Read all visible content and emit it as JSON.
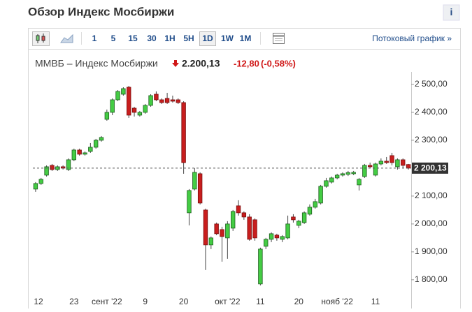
{
  "title": "Обзор Индекс Мосбиржи",
  "info_icon": "i",
  "toolbar": {
    "intervals": [
      "1",
      "5",
      "15",
      "30",
      "1H",
      "5H",
      "1D",
      "1W",
      "1M"
    ],
    "active": "1D",
    "stream_link": "Потоковый график »"
  },
  "quote": {
    "name": "ММВБ – Индекс Мосбиржи",
    "price": "2.200,13",
    "change": "-12,80",
    "change_pct": "(-0,58%)"
  },
  "chart_data": {
    "type": "candlestick",
    "categories": [
      "12",
      null,
      null,
      null,
      null,
      null,
      null,
      "23",
      null,
      null,
      null,
      null,
      null,
      "сент '22",
      null,
      null,
      null,
      null,
      null,
      null,
      "9",
      null,
      null,
      null,
      null,
      null,
      null,
      "20",
      null,
      null,
      null,
      null,
      null,
      null,
      null,
      "окт '22",
      null,
      null,
      null,
      null,
      null,
      "11",
      null,
      null,
      null,
      null,
      null,
      null,
      "20",
      null,
      null,
      null,
      null,
      null,
      null,
      "нояб '22",
      null,
      null,
      null,
      null,
      null,
      null,
      "11",
      null,
      null,
      null,
      null,
      null,
      null
    ],
    "open": [
      2125,
      2145,
      2175,
      2210,
      2195,
      2205,
      2195,
      2230,
      2265,
      2250,
      2260,
      2275,
      2300,
      2375,
      2400,
      2445,
      2465,
      2490,
      2415,
      2390,
      2400,
      2425,
      2465,
      2445,
      2450,
      2445,
      2445,
      2435,
      2040,
      2125,
      2180,
      2050,
      1925,
      2000,
      1980,
      1950,
      1985,
      2065,
      2040,
      2025,
      2015,
      1785,
      1920,
      1945,
      1960,
      1945,
      1950,
      2025,
      1995,
      2005,
      2035,
      2060,
      2075,
      2135,
      2150,
      2165,
      2175,
      2178,
      2180,
      2140,
      2170,
      2210,
      2175,
      2215,
      2225,
      2245,
      2205,
      2230,
      2213
    ],
    "high": [
      2150,
      2165,
      2210,
      2215,
      2210,
      2210,
      2235,
      2270,
      2270,
      2260,
      2290,
      2305,
      2315,
      2410,
      2450,
      2480,
      2490,
      2495,
      2420,
      2405,
      2430,
      2465,
      2475,
      2450,
      2470,
      2460,
      2450,
      2440,
      2125,
      2200,
      2185,
      2055,
      1955,
      2005,
      1990,
      2010,
      2050,
      2085,
      2045,
      2035,
      2020,
      1915,
      1950,
      1970,
      1965,
      1960,
      2030,
      2035,
      2015,
      2045,
      2070,
      2090,
      2140,
      2165,
      2170,
      2180,
      2185,
      2190,
      2190,
      2165,
      2215,
      2220,
      2220,
      2235,
      2240,
      2255,
      2235,
      2235,
      2215
    ],
    "low": [
      2115,
      2140,
      2170,
      2190,
      2190,
      2195,
      2190,
      2225,
      2245,
      2245,
      2255,
      2270,
      2295,
      2370,
      2390,
      2440,
      2460,
      2380,
      2385,
      2385,
      2395,
      2420,
      2440,
      2430,
      2430,
      2435,
      2430,
      2180,
      1995,
      2120,
      2070,
      1835,
      1910,
      1960,
      1865,
      1875,
      1975,
      2030,
      2015,
      1940,
      1940,
      1780,
      1910,
      1935,
      1940,
      1935,
      1945,
      2005,
      1985,
      2000,
      2030,
      2055,
      2070,
      2130,
      2145,
      2160,
      2170,
      2172,
      2175,
      2120,
      2165,
      2200,
      2170,
      2210,
      2215,
      2210,
      2195,
      2200,
      2195
    ],
    "close": [
      2145,
      2160,
      2205,
      2195,
      2205,
      2200,
      2230,
      2265,
      2250,
      2255,
      2275,
      2300,
      2310,
      2400,
      2445,
      2475,
      2485,
      2390,
      2400,
      2400,
      2425,
      2460,
      2445,
      2435,
      2435,
      2440,
      2435,
      2220,
      2120,
      2185,
      2075,
      1925,
      1950,
      1965,
      1955,
      2000,
      2045,
      2040,
      2025,
      1945,
      1950,
      1910,
      1945,
      1965,
      1950,
      1955,
      2000,
      2015,
      2010,
      2040,
      2060,
      2080,
      2135,
      2155,
      2165,
      2175,
      2180,
      2184,
      2185,
      2160,
      2210,
      2205,
      2215,
      2225,
      2220,
      2220,
      2230,
      2210,
      2200.13
    ],
    "up_color": "#44cc44",
    "down_color": "#c81e1e",
    "ylim": [
      1697,
      2545
    ],
    "yticks": [
      {
        "value": 1800,
        "label": "1 800,00"
      },
      {
        "value": 1900,
        "label": "1 900,00"
      },
      {
        "value": 2000,
        "label": "2 000,00"
      },
      {
        "value": 2100,
        "label": "2 100,00"
      },
      {
        "value": 2300,
        "label": "2 300,00"
      },
      {
        "value": 2400,
        "label": "2 400,00"
      },
      {
        "value": 2500,
        "label": "2 500,00"
      }
    ],
    "last_price": {
      "value": 2200.13,
      "label": "2 200,13"
    }
  }
}
